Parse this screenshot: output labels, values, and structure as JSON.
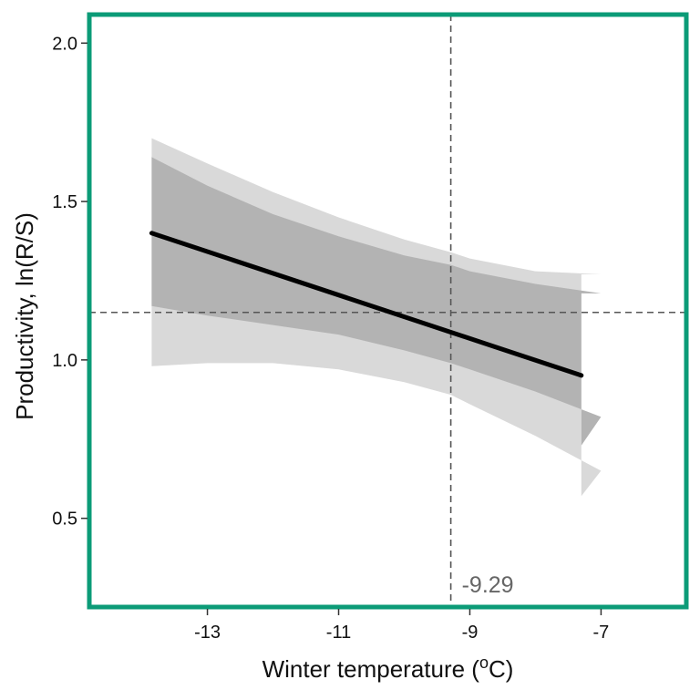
{
  "chart_data": {
    "type": "line",
    "xlabel_prefix": "Winter temperature (",
    "xlabel_degree": "o",
    "xlabel_suffix": "C)",
    "ylabel": "Productivity, ln(R/S)",
    "xlim": [
      -14.8,
      -5.7
    ],
    "ylim": [
      0.22,
      2.09
    ],
    "x_ticks": [
      -13,
      -11,
      -9,
      -7
    ],
    "y_ticks": [
      0.5,
      1.0,
      1.5,
      2.0
    ],
    "x_tick_labels": [
      "-13",
      "-11",
      "-9",
      "-7"
    ],
    "y_tick_labels": [
      "0.5",
      "1.0",
      "1.5",
      "2.0"
    ],
    "series": [
      {
        "name": "fitted",
        "x": [
          -13.85,
          -7.3
        ],
        "y": [
          1.4,
          0.951
        ]
      }
    ],
    "bands": [
      {
        "name": "outer_ci",
        "x": [
          -13.85,
          -13.0,
          -12.0,
          -11.0,
          -10.0,
          -9.29,
          -9.0,
          -8.0,
          -7.0,
          -7.3
        ],
        "upper": [
          1.7,
          1.62,
          1.53,
          1.45,
          1.38,
          1.34,
          1.32,
          1.28,
          1.27,
          1.27
        ],
        "lower": [
          0.98,
          0.99,
          0.99,
          0.97,
          0.93,
          0.89,
          0.86,
          0.76,
          0.65,
          0.57
        ]
      },
      {
        "name": "inner_ci",
        "x": [
          -13.85,
          -13.0,
          -12.0,
          -11.0,
          -10.0,
          -9.29,
          -9.0,
          -8.0,
          -7.0,
          -7.3
        ],
        "upper": [
          1.64,
          1.55,
          1.46,
          1.39,
          1.33,
          1.3,
          1.28,
          1.24,
          1.21,
          1.21
        ],
        "lower": [
          1.17,
          1.14,
          1.11,
          1.08,
          1.03,
          0.99,
          0.97,
          0.9,
          0.82,
          0.73
        ]
      }
    ],
    "ref_hline_y": 1.15,
    "ref_vline_x": -9.29,
    "annotation": "-9.29",
    "colors": {
      "frame": "#0b9b77",
      "outer_band": "#d9d9d9",
      "inner_band": "#b3b3b3",
      "line": "#000000",
      "ref": "#555555",
      "annotation": "#666666"
    }
  }
}
